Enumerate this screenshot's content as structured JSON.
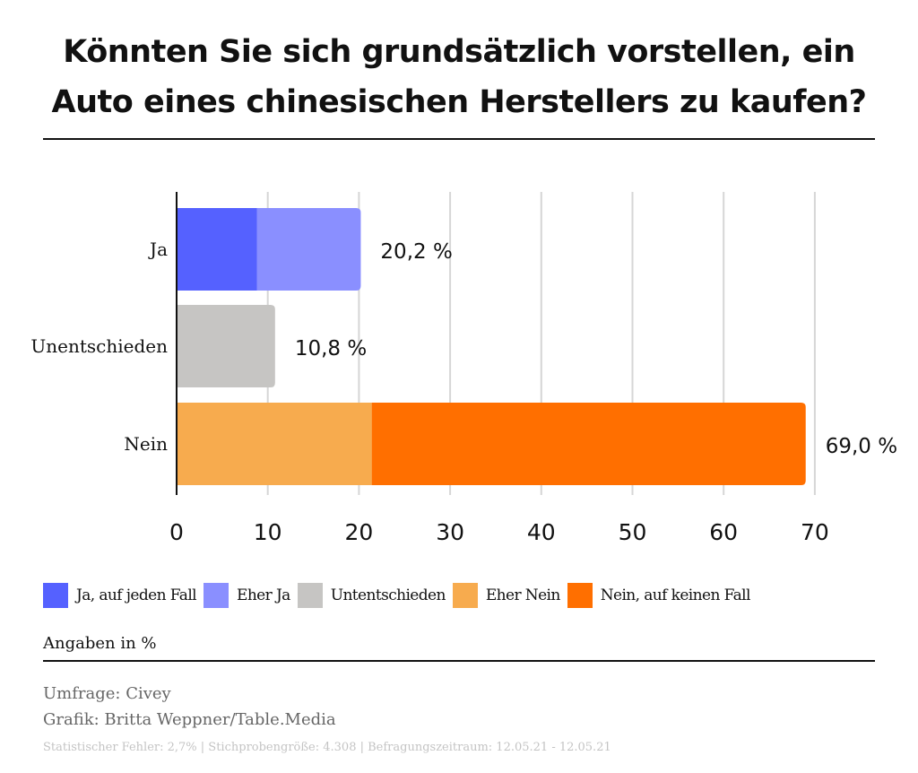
{
  "chart_data": {
    "type": "bar",
    "orientation": "horizontal",
    "stacked": true,
    "title_lines": [
      "Könnten Sie sich grundsätzlich vorstellen, ein",
      "Auto eines chinesischen Herstellers zu kaufen?"
    ],
    "categories": [
      "Ja",
      "Unentschieden",
      "Nein"
    ],
    "series": [
      {
        "name": "Ja, auf jeden Fall",
        "color": "#5561ff",
        "values": [
          8.8,
          0,
          0
        ]
      },
      {
        "name": "Eher Ja",
        "color": "#8a8fff",
        "values": [
          11.4,
          0,
          0
        ]
      },
      {
        "name": "Untentschieden",
        "color": "#c6c5c3",
        "values": [
          0,
          10.8,
          0
        ]
      },
      {
        "name": "Eher Nein",
        "color": "#f7ab4e",
        "values": [
          0,
          0,
          21.4
        ]
      },
      {
        "name": "Nein, auf keinen Fall",
        "color": "#ff6f00",
        "values": [
          0,
          0,
          47.6
        ]
      }
    ],
    "totals": [
      20.2,
      10.8,
      69.0
    ],
    "total_labels": [
      "20,2 %",
      "10,8 %",
      "69,0 %"
    ],
    "xlim": [
      0,
      70
    ],
    "xticks": [
      0,
      10,
      20,
      30,
      40,
      50,
      60,
      70
    ],
    "grid": true,
    "legend_position": "bottom",
    "unit_note": "Angaben in %"
  },
  "source": {
    "survey": "Umfrage: Civey",
    "graphic": "Grafik: Britta Weppner/Table.Media",
    "footnote": "Statistischer Fehler: 2,7% | Stichprobengröße: 4.308 | Befragungszeitraum: 12.05.21 - 12.05.21"
  }
}
